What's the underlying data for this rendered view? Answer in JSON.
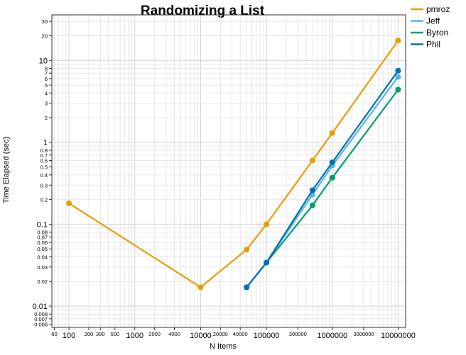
{
  "chart_data": {
    "type": "line",
    "title": "Randomizing a List",
    "xlabel": "N Items",
    "ylabel": "Time Elapsed (sec)",
    "xscale": "log",
    "yscale": "log",
    "xlim": [
      55,
      13000000
    ],
    "ylim": [
      0.0055,
      36
    ],
    "grid": true,
    "legend_position": "top-right outside",
    "x_ticks_major": [
      {
        "v": 100,
        "label": "100"
      },
      {
        "v": 1000,
        "label": "1000"
      },
      {
        "v": 10000,
        "label": "10000"
      },
      {
        "v": 100000,
        "label": "100000"
      },
      {
        "v": 1000000,
        "label": "1000000"
      },
      {
        "v": 10000000,
        "label": "10000000"
      }
    ],
    "x_ticks_minor": [
      {
        "v": 60,
        "label": "60"
      },
      {
        "v": 200,
        "label": "200"
      },
      {
        "v": 300,
        "label": "300"
      },
      {
        "v": 500,
        "label": "500"
      },
      {
        "v": 2000,
        "label": "2000"
      },
      {
        "v": 4000,
        "label": "4000"
      },
      {
        "v": 20000,
        "label": "20000"
      },
      {
        "v": 40000,
        "label": "40000"
      },
      {
        "v": 300000,
        "label": "300000"
      },
      {
        "v": 3000000,
        "label": "3000000"
      }
    ],
    "y_ticks_major": [
      {
        "v": 0.01,
        "label": "0.01"
      },
      {
        "v": 0.1,
        "label": "0.1"
      },
      {
        "v": 1,
        "label": "1"
      },
      {
        "v": 10,
        "label": "10"
      }
    ],
    "y_ticks_minor": [
      {
        "v": 0.006,
        "label": "0.006"
      },
      {
        "v": 0.007,
        "label": "0.007"
      },
      {
        "v": 0.008,
        "label": "0.008"
      },
      {
        "v": 0.02,
        "label": "0.02"
      },
      {
        "v": 0.03,
        "label": "0.03"
      },
      {
        "v": 0.04,
        "label": "0.04"
      },
      {
        "v": 0.05,
        "label": "0.05"
      },
      {
        "v": 0.06,
        "label": "0.06"
      },
      {
        "v": 0.07,
        "label": "0.07"
      },
      {
        "v": 0.08,
        "label": "0.08"
      },
      {
        "v": 0.2,
        "label": "0.2"
      },
      {
        "v": 0.3,
        "label": "0.3"
      },
      {
        "v": 0.4,
        "label": "0.4"
      },
      {
        "v": 0.5,
        "label": "0.5"
      },
      {
        "v": 0.6,
        "label": "0.6"
      },
      {
        "v": 0.7,
        "label": "0.7"
      },
      {
        "v": 0.8,
        "label": "0.8"
      },
      {
        "v": 2,
        "label": "2"
      },
      {
        "v": 3,
        "label": "3"
      },
      {
        "v": 4,
        "label": "4"
      },
      {
        "v": 5,
        "label": "5"
      },
      {
        "v": 6,
        "label": "6"
      },
      {
        "v": 7,
        "label": "7"
      },
      {
        "v": 8,
        "label": "8"
      },
      {
        "v": 20,
        "label": "20"
      },
      {
        "v": 30,
        "label": "30"
      }
    ],
    "series": [
      {
        "name": "pmroz",
        "color": "#E69F00",
        "x": [
          100,
          10000,
          50000,
          100000,
          500000,
          1000000,
          10000000
        ],
        "y": [
          0.18,
          0.017,
          0.049,
          0.1,
          0.6,
          1.3,
          17.5
        ]
      },
      {
        "name": "Jeff",
        "color": "#56B4E9",
        "x": [
          50000,
          100000,
          500000,
          1000000,
          10000000
        ],
        "y": [
          0.017,
          0.034,
          0.23,
          0.52,
          6.3
        ]
      },
      {
        "name": "Byron",
        "color": "#009E73",
        "x": [
          50000,
          100000,
          500000,
          1000000,
          10000000
        ],
        "y": [
          0.017,
          0.034,
          0.17,
          0.37,
          4.4
        ]
      },
      {
        "name": "Phil",
        "color": "#0072B2",
        "x": [
          50000,
          100000,
          500000,
          1000000,
          10000000
        ],
        "y": [
          0.017,
          0.034,
          0.26,
          0.57,
          7.5
        ]
      }
    ]
  }
}
